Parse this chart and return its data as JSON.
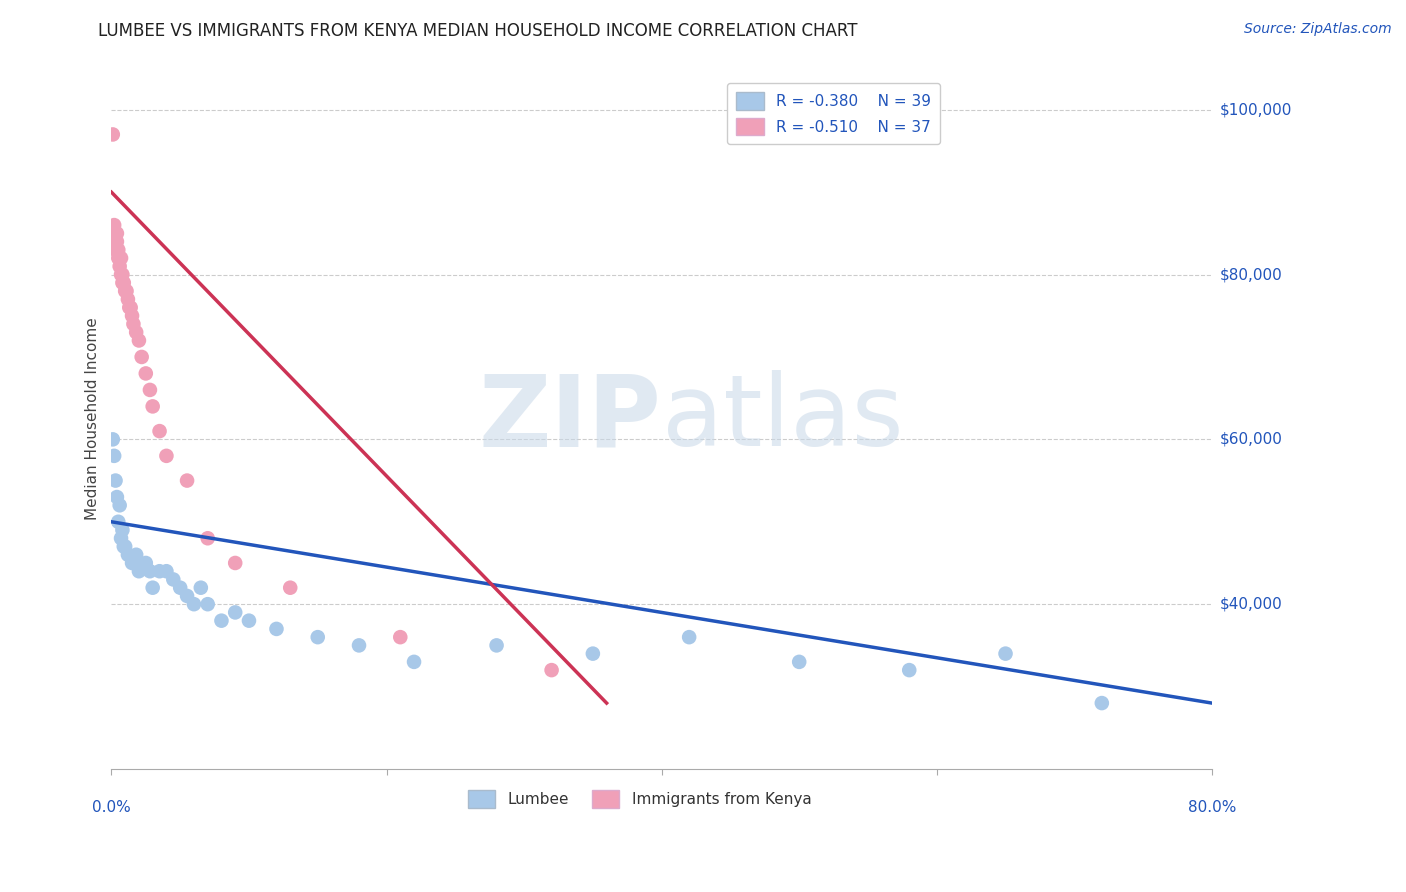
{
  "title": "LUMBEE VS IMMIGRANTS FROM KENYA MEDIAN HOUSEHOLD INCOME CORRELATION CHART",
  "source": "Source: ZipAtlas.com",
  "xlabel_lumbee": "Lumbee",
  "xlabel_kenya": "Immigrants from Kenya",
  "ylabel": "Median Household Income",
  "r_lumbee": -0.38,
  "n_lumbee": 39,
  "r_kenya": -0.51,
  "n_kenya": 37,
  "color_lumbee": "#a8c8e8",
  "color_kenya": "#f0a0b8",
  "line_color_lumbee": "#2255bb",
  "line_color_kenya": "#cc3355",
  "watermark_zip": "ZIP",
  "watermark_atlas": "atlas",
  "xlim": [
    0.0,
    0.8
  ],
  "ylim": [
    20000,
    105000
  ],
  "yticks": [
    40000,
    60000,
    80000,
    100000
  ],
  "ytick_labels": [
    "$40,000",
    "$60,000",
    "$80,000",
    "$100,000"
  ],
  "xticks": [
    0.0,
    0.2,
    0.4,
    0.6,
    0.8
  ],
  "lumbee_x": [
    0.001,
    0.002,
    0.003,
    0.004,
    0.005,
    0.006,
    0.007,
    0.008,
    0.009,
    0.01,
    0.012,
    0.015,
    0.018,
    0.02,
    0.025,
    0.028,
    0.03,
    0.035,
    0.04,
    0.045,
    0.05,
    0.055,
    0.06,
    0.065,
    0.07,
    0.08,
    0.09,
    0.1,
    0.12,
    0.15,
    0.18,
    0.22,
    0.28,
    0.35,
    0.42,
    0.5,
    0.58,
    0.65,
    0.72
  ],
  "lumbee_y": [
    60000,
    58000,
    55000,
    53000,
    50000,
    52000,
    48000,
    49000,
    47000,
    47000,
    46000,
    45000,
    46000,
    44000,
    45000,
    44000,
    42000,
    44000,
    44000,
    43000,
    42000,
    41000,
    40000,
    42000,
    40000,
    38000,
    39000,
    38000,
    37000,
    36000,
    35000,
    33000,
    35000,
    34000,
    36000,
    33000,
    32000,
    34000,
    28000
  ],
  "kenya_x": [
    0.001,
    0.002,
    0.002,
    0.003,
    0.003,
    0.004,
    0.004,
    0.005,
    0.005,
    0.006,
    0.006,
    0.007,
    0.007,
    0.008,
    0.008,
    0.009,
    0.01,
    0.011,
    0.012,
    0.013,
    0.014,
    0.015,
    0.016,
    0.018,
    0.02,
    0.022,
    0.025,
    0.028,
    0.03,
    0.035,
    0.04,
    0.055,
    0.07,
    0.09,
    0.13,
    0.21,
    0.32
  ],
  "kenya_y": [
    97000,
    86000,
    85000,
    84000,
    83000,
    85000,
    84000,
    83000,
    82000,
    82000,
    81000,
    82000,
    80000,
    80000,
    79000,
    79000,
    78000,
    78000,
    77000,
    76000,
    76000,
    75000,
    74000,
    73000,
    72000,
    70000,
    68000,
    66000,
    64000,
    61000,
    58000,
    55000,
    48000,
    45000,
    42000,
    36000,
    32000
  ],
  "blue_line_x": [
    0.0,
    0.8
  ],
  "blue_line_y": [
    50000,
    28000
  ],
  "pink_line_x": [
    0.0,
    0.36
  ],
  "pink_line_y": [
    90000,
    28000
  ]
}
